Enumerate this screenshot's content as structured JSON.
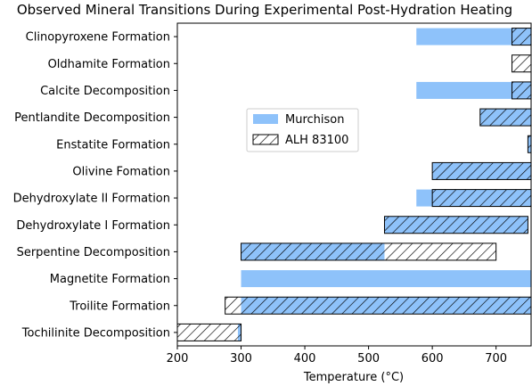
{
  "chart_data": {
    "type": "bar",
    "orientation": "horizontal",
    "title": "Observed Mineral Transitions During Experimental Post-Hydration Heating",
    "xlabel": "Temperature (°C)",
    "xlim": [
      200,
      755
    ],
    "xticks": [
      200,
      300,
      400,
      500,
      600,
      700
    ],
    "legend_position": "center",
    "categories": [
      "Clinopyroxene Formation",
      "Oldhamite Formation",
      "Calcite Decomposition",
      "Pentlandite Decomposition",
      "Enstatite Formation",
      "Olivine Fomation",
      "Dehydroxylate II Formation",
      "Dehydroxylate I Formation",
      "Serpentine Decomposition",
      "Magnetite Formation",
      "Troilite Formation",
      "Tochilinite Decomposition"
    ],
    "series": [
      {
        "name": "Murchison",
        "color": "#8ec2fa",
        "hatch": false,
        "ranges": [
          [
            575,
            755
          ],
          null,
          [
            575,
            755
          ],
          [
            675,
            755
          ],
          [
            750,
            755
          ],
          [
            600,
            755
          ],
          [
            575,
            755
          ],
          [
            525,
            750
          ],
          [
            300,
            525
          ],
          [
            300,
            755
          ],
          [
            300,
            755
          ],
          [
            295,
            300
          ]
        ]
      },
      {
        "name": "ALH 83100",
        "color": "#ffffff",
        "hatch": true,
        "ranges": [
          [
            725,
            755
          ],
          [
            725,
            755
          ],
          [
            725,
            755
          ],
          [
            675,
            755
          ],
          [
            750,
            755
          ],
          [
            600,
            755
          ],
          [
            600,
            755
          ],
          [
            525,
            750
          ],
          [
            300,
            700
          ],
          null,
          [
            275,
            755
          ],
          [
            200,
            300
          ]
        ]
      }
    ]
  }
}
